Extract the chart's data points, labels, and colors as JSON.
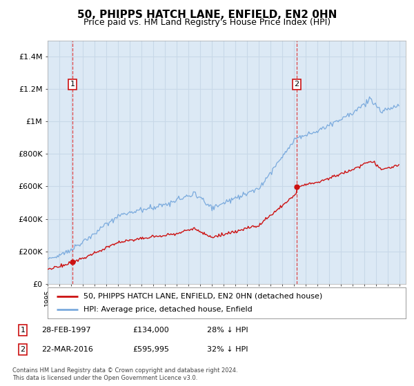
{
  "title": "50, PHIPPS HATCH LANE, ENFIELD, EN2 0HN",
  "subtitle": "Price paid vs. HM Land Registry's House Price Index (HPI)",
  "title_fontsize": 11,
  "subtitle_fontsize": 9,
  "bg_color": "#dce9f5",
  "grid_color": "#c8d8e8",
  "hpi_color": "#7aaadd",
  "price_color": "#cc1111",
  "dashed_line_color": "#dd3333",
  "ylim": [
    0,
    1500000
  ],
  "yticks": [
    0,
    200000,
    400000,
    600000,
    800000,
    1000000,
    1200000,
    1400000
  ],
  "ytick_labels": [
    "£0",
    "£200K",
    "£400K",
    "£600K",
    "£800K",
    "£1M",
    "£1.2M",
    "£1.4M"
  ],
  "sale1_year": 1997.12,
  "sale1_price": 134000,
  "sale1_label": "1",
  "sale2_year": 2016.22,
  "sale2_price": 595995,
  "sale2_label": "2",
  "legend_line1": "50, PHIPPS HATCH LANE, ENFIELD, EN2 0HN (detached house)",
  "legend_line2": "HPI: Average price, detached house, Enfield",
  "footer1": "Contains HM Land Registry data © Crown copyright and database right 2024.",
  "footer2": "This data is licensed under the Open Government Licence v3.0.",
  "table_row1": [
    "1",
    "28-FEB-1997",
    "£134,000",
    "28% ↓ HPI"
  ],
  "table_row2": [
    "2",
    "22-MAR-2016",
    "£595,995",
    "32% ↓ HPI"
  ]
}
